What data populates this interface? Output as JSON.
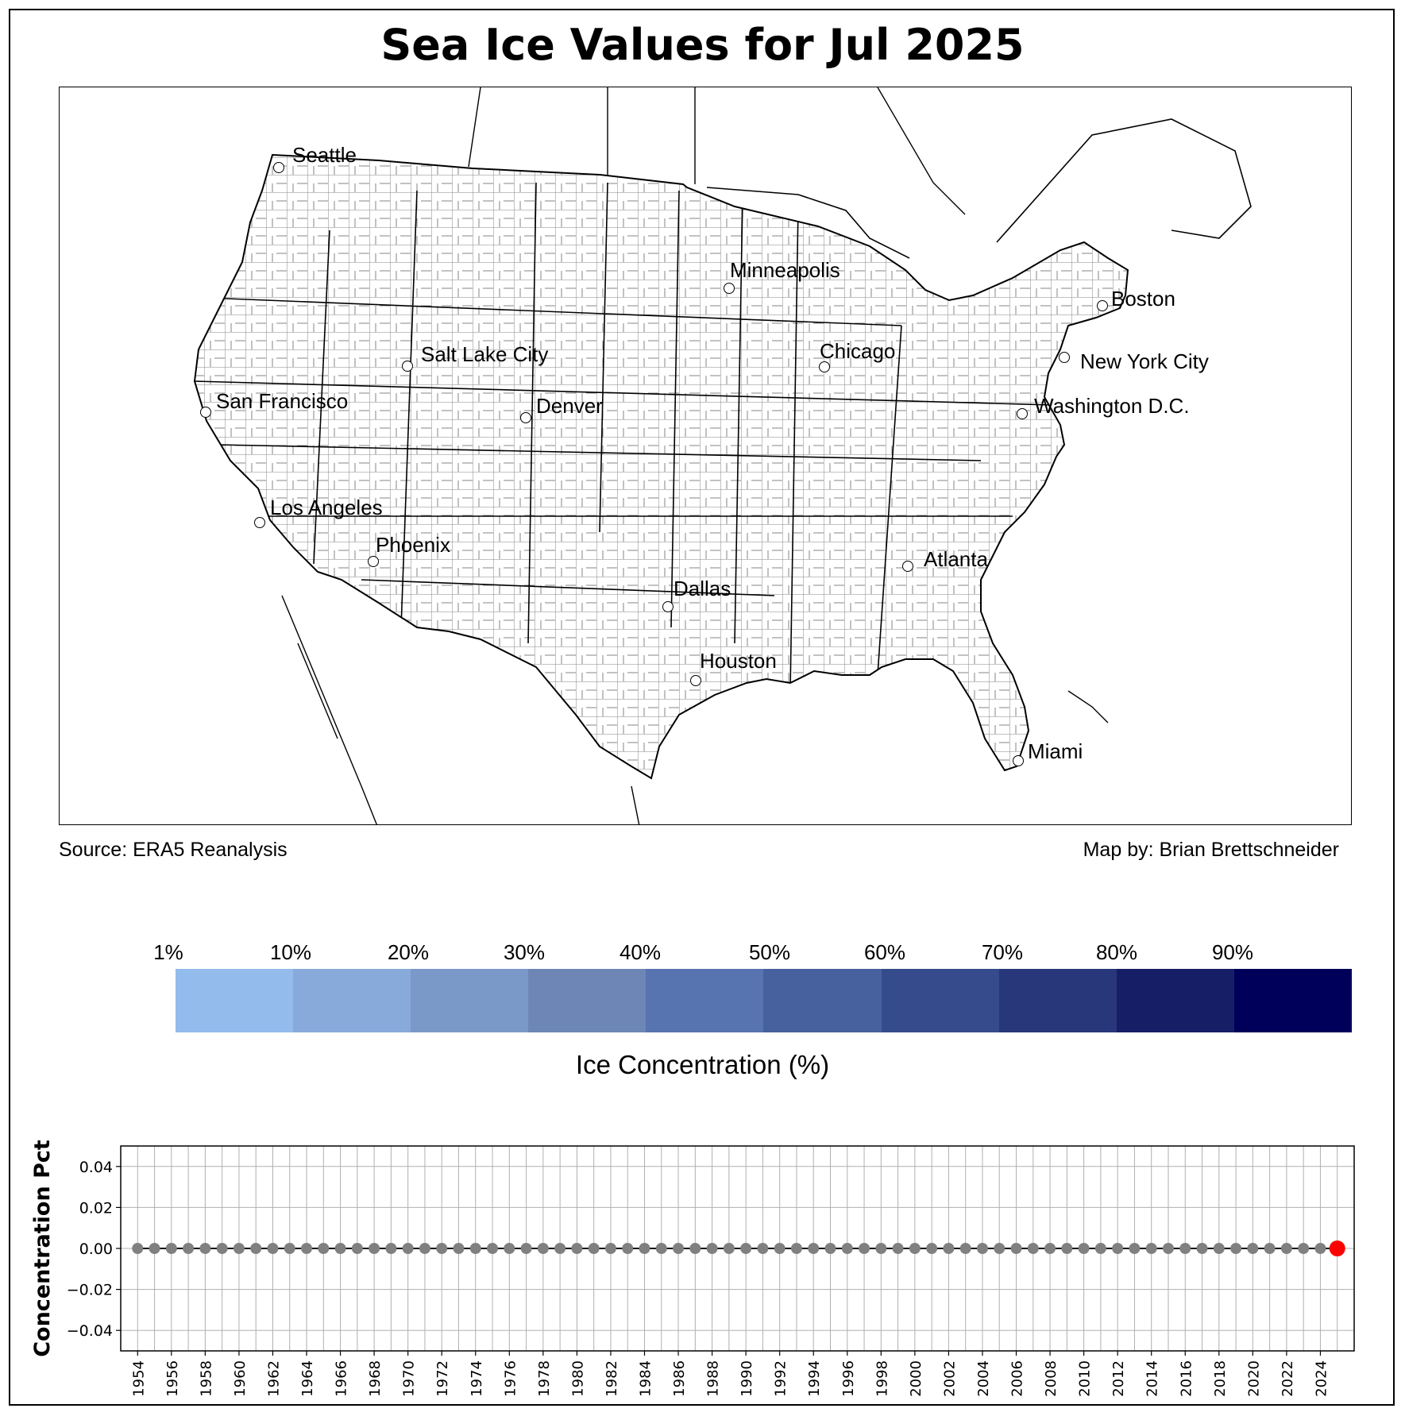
{
  "title": "Sea Ice Values for Jul 2025",
  "map": {
    "source": "Source: ERA5 Reanalysis",
    "credit": "Map by: Brian Brettschneider",
    "cities": [
      {
        "name": "Seattle"
      },
      {
        "name": "Minneapolis"
      },
      {
        "name": "Boston"
      },
      {
        "name": "Salt Lake City"
      },
      {
        "name": "Chicago"
      },
      {
        "name": "New York City"
      },
      {
        "name": "San Francisco"
      },
      {
        "name": "Denver"
      },
      {
        "name": "Washington D.C."
      },
      {
        "name": "Los Angeles"
      },
      {
        "name": "Phoenix"
      },
      {
        "name": "Atlanta"
      },
      {
        "name": "Dallas"
      },
      {
        "name": "Houston"
      },
      {
        "name": "Miami"
      }
    ]
  },
  "colorbar": {
    "label": "Ice Concentration (%)",
    "ticks": [
      "1%",
      "10%",
      "20%",
      "30%",
      "40%",
      "50%",
      "60%",
      "70%",
      "80%",
      "90%"
    ],
    "colors": [
      "#93bbeb",
      "#88aada",
      "#7a99c9",
      "#6d86b5",
      "#5773b0",
      "#47609e",
      "#364b8b",
      "#273779",
      "#161e66",
      "#00005a"
    ]
  },
  "chart_data": {
    "type": "line",
    "ylabel": "Concentration Pct",
    "xlabel": "",
    "title": "",
    "ylim": [
      -0.05,
      0.05
    ],
    "xlim": [
      1953,
      2026
    ],
    "yticks": [
      "0.04",
      "0.02",
      "0.00",
      "−0.02",
      "−0.04"
    ],
    "ytick_values": [
      0.04,
      0.02,
      0.0,
      -0.02,
      -0.04
    ],
    "xticks": [
      "1954",
      "1956",
      "1958",
      "1960",
      "1962",
      "1964",
      "1966",
      "1968",
      "1970",
      "1972",
      "1974",
      "1976",
      "1978",
      "1980",
      "1982",
      "1984",
      "1986",
      "1988",
      "1990",
      "1992",
      "1994",
      "1996",
      "1998",
      "2000",
      "2002",
      "2004",
      "2006",
      "2008",
      "2010",
      "2012",
      "2014",
      "2016",
      "2018",
      "2020",
      "2022",
      "2024"
    ],
    "grid": true,
    "series": [
      {
        "color": "#808080",
        "line_color": "#000000",
        "x_start": 1954,
        "x_end": 2024,
        "value": 0.0,
        "values": [
          0,
          0,
          0,
          0,
          0,
          0,
          0,
          0,
          0,
          0,
          0,
          0,
          0,
          0,
          0,
          0,
          0,
          0,
          0,
          0,
          0,
          0,
          0,
          0,
          0,
          0,
          0,
          0,
          0,
          0,
          0,
          0,
          0,
          0,
          0,
          0,
          0,
          0,
          0,
          0,
          0,
          0,
          0,
          0,
          0,
          0,
          0,
          0,
          0,
          0,
          0,
          0,
          0,
          0,
          0,
          0,
          0,
          0,
          0,
          0,
          0,
          0,
          0,
          0,
          0,
          0,
          0,
          0,
          0,
          0,
          0
        ]
      },
      {
        "color": "#ff0000",
        "x": [
          2025
        ],
        "values": [
          0.0
        ],
        "highlight": true
      }
    ]
  }
}
